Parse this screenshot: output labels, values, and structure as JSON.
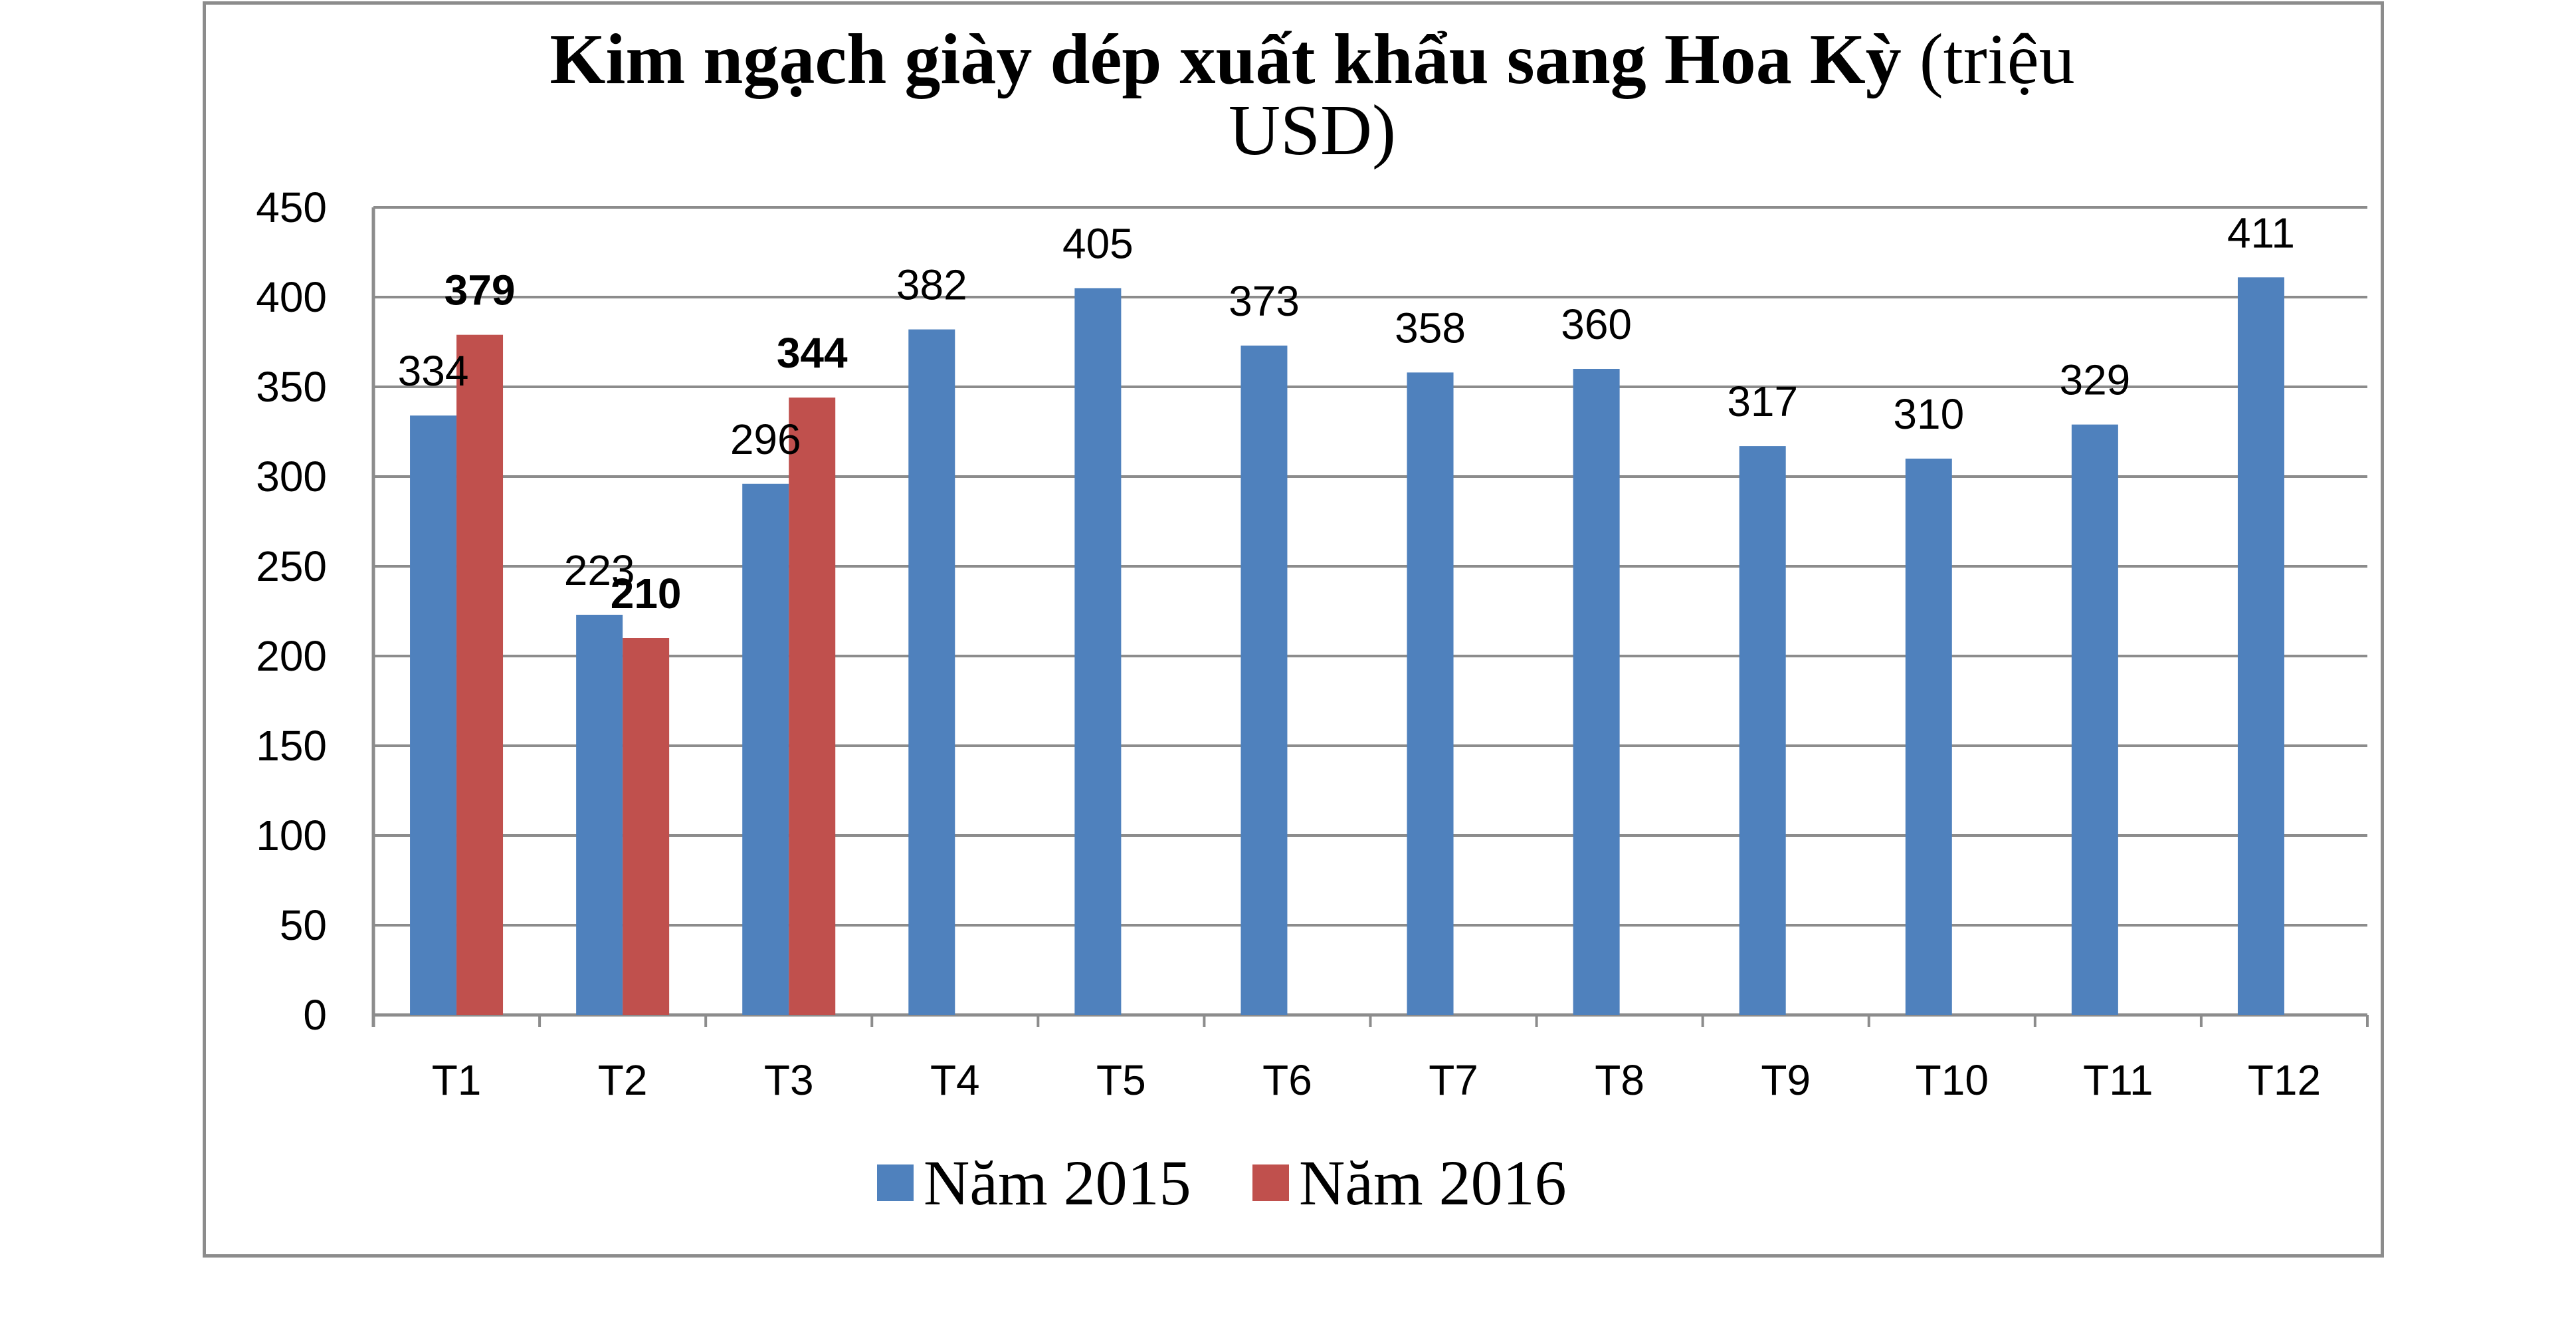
{
  "chart_data": {
    "type": "bar",
    "title": "Kim ngạch giày dép xuất khẩu sang Hoa Kỳ (triệu USD)",
    "title_lines": [
      [
        {
          "text": "Kim ngạch giày dép xuất khẩu sang Hoa Kỳ",
          "bold": true
        },
        {
          "text": " (triệu",
          "bold": false
        }
      ],
      [
        {
          "text": "USD)",
          "bold": false
        }
      ]
    ],
    "categories": [
      "T1",
      "T2",
      "T3",
      "T4",
      "T5",
      "T6",
      "T7",
      "T8",
      "T9",
      "T10",
      "T11",
      "T12"
    ],
    "series": [
      {
        "name": "Năm 2015",
        "color": "#4f81bd",
        "values": [
          334,
          223,
          296,
          382,
          405,
          373,
          358,
          360,
          317,
          310,
          329,
          411
        ],
        "labels": [
          "334",
          "223",
          "296",
          "382",
          "405",
          "373",
          "358",
          "360",
          "317",
          "310",
          "329",
          "411"
        ],
        "label_bold": false
      },
      {
        "name": "Năm 2016",
        "color": "#c0504d",
        "values": [
          379,
          210,
          344,
          null,
          null,
          null,
          null,
          null,
          null,
          null,
          null,
          null
        ],
        "labels": [
          "379",
          "210",
          "344",
          null,
          null,
          null,
          null,
          null,
          null,
          null,
          null,
          null
        ],
        "label_bold": true
      }
    ],
    "ylim": [
      0,
      450
    ],
    "yticks": [
      0,
      50,
      100,
      150,
      200,
      250,
      300,
      350,
      400,
      450
    ],
    "ytick_labels": [
      "0",
      "50",
      "100",
      "150",
      "200",
      "250",
      "300",
      "350",
      "400",
      "450"
    ],
    "xlabel": "",
    "ylabel": "",
    "grid": true,
    "gridline_color": "#8c8c8c",
    "legend_position": "bottom"
  }
}
